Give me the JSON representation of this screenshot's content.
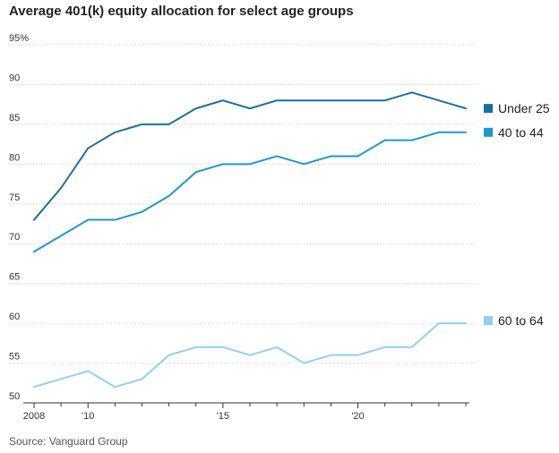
{
  "chart_data": {
    "type": "line",
    "title": "Average 401(k) equity allocation for select age groups",
    "source": "Source: Vanguard Group",
    "xlabel": "",
    "ylabel": "",
    "x": [
      2008,
      2009,
      2010,
      2011,
      2012,
      2013,
      2014,
      2015,
      2016,
      2017,
      2018,
      2019,
      2020,
      2021,
      2022,
      2023,
      2024
    ],
    "x_ticks": [
      {
        "value": 2008,
        "label": "2008"
      },
      {
        "value": 2010,
        "label": "'10"
      },
      {
        "value": 2015,
        "label": "'15"
      },
      {
        "value": 2020,
        "label": "'20"
      }
    ],
    "y_ticks": [
      {
        "value": 95,
        "label": "95%"
      },
      {
        "value": 90,
        "label": "90"
      },
      {
        "value": 85,
        "label": "85"
      },
      {
        "value": 80,
        "label": "80"
      },
      {
        "value": 75,
        "label": "75"
      },
      {
        "value": 70,
        "label": "70"
      },
      {
        "value": 65,
        "label": "65"
      },
      {
        "value": 60,
        "label": "60"
      },
      {
        "value": 55,
        "label": "55"
      },
      {
        "value": 50,
        "label": "50"
      }
    ],
    "xlim": [
      2008,
      2024
    ],
    "ylim": [
      50,
      95
    ],
    "grid": true,
    "series": [
      {
        "name": "Under 25",
        "color": "#1a6fa0",
        "values": [
          73,
          77,
          82,
          84,
          85,
          85,
          87,
          88,
          87,
          88,
          88,
          88,
          88,
          88,
          89,
          88,
          87
        ]
      },
      {
        "name": "40 to 44",
        "color": "#1f96cf",
        "values": [
          69,
          71,
          73,
          73,
          74,
          76,
          79,
          80,
          80,
          81,
          80,
          81,
          81,
          83,
          83,
          84,
          84
        ]
      },
      {
        "name": "60 to 64",
        "color": "#8fd0ee",
        "values": [
          52,
          53,
          54,
          52,
          53,
          56,
          57,
          57,
          56,
          57,
          55,
          56,
          56,
          57,
          57,
          60,
          60
        ]
      }
    ]
  }
}
